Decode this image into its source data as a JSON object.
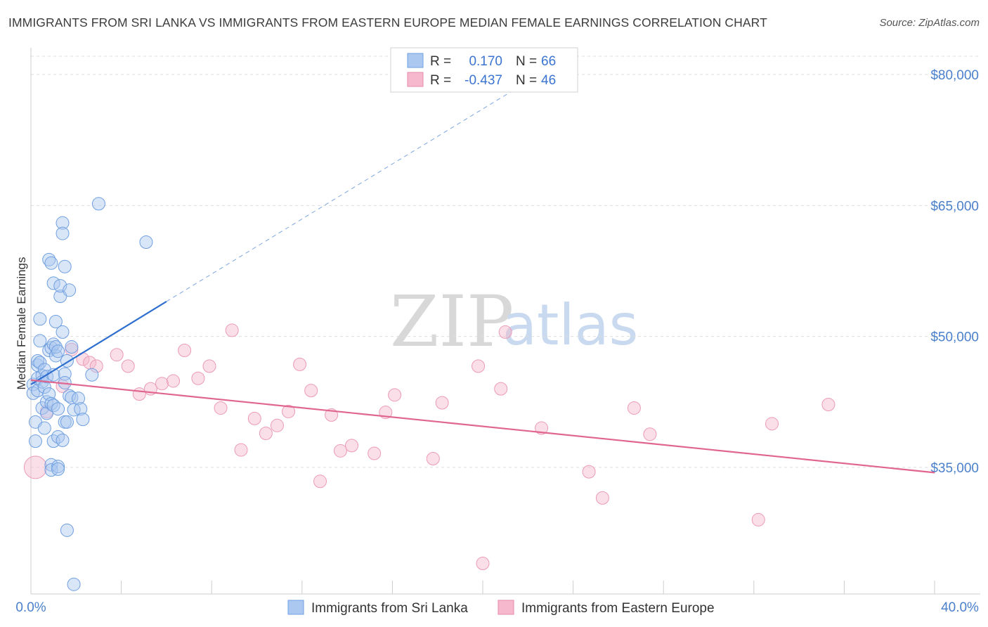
{
  "header": {
    "title": "IMMIGRANTS FROM SRI LANKA VS IMMIGRANTS FROM EASTERN EUROPE MEDIAN FEMALE EARNINGS CORRELATION CHART",
    "source": "Source: ZipAtlas.com"
  },
  "colors": {
    "blue": "#3b74d0",
    "blue_fill": "#aac8f0",
    "pink": "#e05a8c",
    "pink_fill": "#f5b8cd"
  },
  "chart_data": {
    "type": "scatter",
    "title": "IMMIGRANTS FROM SRI LANKA VS IMMIGRANTS FROM EASTERN EUROPE MEDIAN FEMALE EARNINGS CORRELATION CHART",
    "xlabel": "",
    "ylabel": "Median Female Earnings",
    "xlim": [
      0,
      40
    ],
    "ylim": [
      20500,
      82500
    ],
    "y_ticks": [
      35000,
      50000,
      65000,
      80000
    ],
    "y_tick_labels": [
      "$35,000",
      "$50,000",
      "$65,000",
      "$80,000"
    ],
    "x_tick_labels": [
      "0.0%",
      "40.0%"
    ],
    "grid": true,
    "legend": {
      "position": "top-center",
      "rows": [
        {
          "r_label": "R =",
          "r_value": "0.170",
          "n_label": "N =",
          "n_value": "66"
        },
        {
          "r_label": "R =",
          "r_value": "-0.437",
          "n_label": "N =",
          "n_value": "46"
        }
      ]
    },
    "watermark": {
      "zip": "ZIP",
      "atlas": "atlas"
    },
    "series": [
      {
        "name": "Immigrants from Sri Lanka",
        "color": "#3b74d0",
        "trend": {
          "x0": 0,
          "y0": 44500,
          "x1": 6.0,
          "y1": 54000,
          "dash_to_x": 22.5,
          "dash_to_y": 80000
        },
        "points": [
          [
            0.1,
            44500
          ],
          [
            0.1,
            43500
          ],
          [
            0.2,
            38000
          ],
          [
            0.2,
            40200
          ],
          [
            0.3,
            43800
          ],
          [
            0.3,
            46700
          ],
          [
            0.3,
            47200
          ],
          [
            0.3,
            45200
          ],
          [
            0.4,
            49500
          ],
          [
            0.4,
            52000
          ],
          [
            0.4,
            47000
          ],
          [
            0.5,
            45500
          ],
          [
            0.5,
            44800
          ],
          [
            0.5,
            41800
          ],
          [
            0.6,
            39500
          ],
          [
            0.6,
            46200
          ],
          [
            0.6,
            44200
          ],
          [
            0.7,
            45400
          ],
          [
            0.7,
            42500
          ],
          [
            0.7,
            41200
          ],
          [
            0.8,
            58800
          ],
          [
            0.8,
            43400
          ],
          [
            0.8,
            48400
          ],
          [
            0.9,
            42300
          ],
          [
            0.9,
            58400
          ],
          [
            0.9,
            35300
          ],
          [
            0.9,
            34700
          ],
          [
            0.9,
            48700
          ],
          [
            1.0,
            49100
          ],
          [
            1.0,
            45600
          ],
          [
            1.0,
            42100
          ],
          [
            1.0,
            38000
          ],
          [
            1.0,
            56100
          ],
          [
            1.1,
            51700
          ],
          [
            1.1,
            47800
          ],
          [
            1.1,
            48800
          ],
          [
            1.2,
            41700
          ],
          [
            1.2,
            38500
          ],
          [
            1.2,
            48300
          ],
          [
            1.2,
            35100
          ],
          [
            1.2,
            34800
          ],
          [
            1.3,
            54600
          ],
          [
            1.3,
            55800
          ],
          [
            1.4,
            63000
          ],
          [
            1.4,
            61800
          ],
          [
            1.4,
            50500
          ],
          [
            1.4,
            38100
          ],
          [
            1.5,
            40200
          ],
          [
            1.5,
            45700
          ],
          [
            1.5,
            44700
          ],
          [
            1.5,
            58000
          ],
          [
            1.6,
            47200
          ],
          [
            1.6,
            27800
          ],
          [
            1.6,
            40200
          ],
          [
            1.7,
            55300
          ],
          [
            1.7,
            43200
          ],
          [
            1.8,
            48800
          ],
          [
            1.8,
            43000
          ],
          [
            1.9,
            21600
          ],
          [
            1.9,
            41600
          ],
          [
            2.1,
            42900
          ],
          [
            2.2,
            41700
          ],
          [
            2.3,
            40500
          ],
          [
            2.7,
            45600
          ],
          [
            3.0,
            65200
          ],
          [
            5.1,
            60800
          ]
        ]
      },
      {
        "name": "Immigrants from Eastern Europe",
        "color": "#e05a8c",
        "trend": {
          "x0": 0,
          "y0": 45000,
          "x1": 40,
          "y1": 34400
        },
        "points": [
          [
            0.2,
            35000
          ],
          [
            0.7,
            41400
          ],
          [
            1.4,
            44300
          ],
          [
            1.8,
            48500
          ],
          [
            2.3,
            47400
          ],
          [
            2.6,
            47000
          ],
          [
            2.9,
            46600
          ],
          [
            3.8,
            47900
          ],
          [
            4.3,
            46600
          ],
          [
            4.8,
            43400
          ],
          [
            5.3,
            44000
          ],
          [
            5.8,
            44600
          ],
          [
            6.3,
            44900
          ],
          [
            6.8,
            48400
          ],
          [
            7.4,
            45200
          ],
          [
            7.9,
            46600
          ],
          [
            8.4,
            41800
          ],
          [
            8.9,
            50700
          ],
          [
            9.3,
            37000
          ],
          [
            9.9,
            40600
          ],
          [
            10.4,
            38900
          ],
          [
            10.9,
            39800
          ],
          [
            11.4,
            41400
          ],
          [
            11.9,
            46800
          ],
          [
            12.4,
            43800
          ],
          [
            12.8,
            33400
          ],
          [
            13.3,
            41000
          ],
          [
            13.7,
            36900
          ],
          [
            14.2,
            37500
          ],
          [
            15.2,
            36600
          ],
          [
            15.7,
            41300
          ],
          [
            16.1,
            43300
          ],
          [
            17.8,
            36000
          ],
          [
            18.2,
            42400
          ],
          [
            19.8,
            46600
          ],
          [
            20.0,
            24000
          ],
          [
            20.8,
            44000
          ],
          [
            21.0,
            50500
          ],
          [
            22.6,
            39500
          ],
          [
            24.7,
            34500
          ],
          [
            25.3,
            31500
          ],
          [
            26.7,
            41800
          ],
          [
            27.4,
            38800
          ],
          [
            32.2,
            29000
          ],
          [
            32.8,
            40000
          ],
          [
            35.3,
            42200
          ]
        ]
      }
    ]
  }
}
